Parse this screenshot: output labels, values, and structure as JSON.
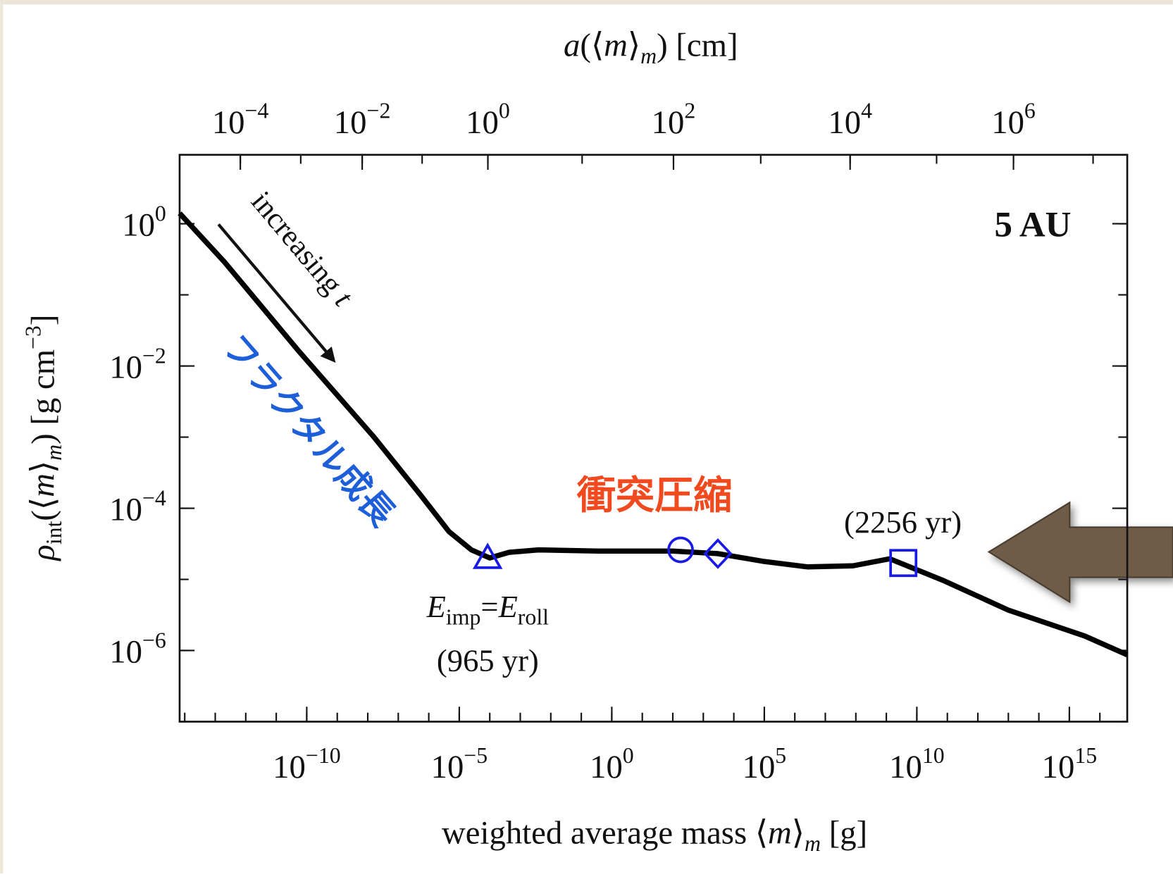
{
  "chart_data": {
    "type": "line",
    "log_x": true,
    "log_y": true,
    "x2_label": [
      "a",
      "(⟨",
      "m",
      "⟩",
      "m",
      ")  [cm]"
    ],
    "x_label": [
      "weighted average mass  ⟨",
      "m",
      "⟩",
      "m",
      "  [g]"
    ],
    "y_label": [
      "ρ",
      "int",
      "(⟨",
      "m",
      "⟩",
      "m",
      ")  [g cm",
      "−3",
      "]"
    ],
    "x": [
      6.8e-15,
      2e-13,
      5.6e-11,
      1.6e-08,
      5e-07,
      4.6e-06,
      2.5e-05,
      0.0001,
      0.00042,
      0.004,
      0.36,
      100,
      3000,
      89000.0,
      2600000.0,
      80000000.0,
      1300000000.0,
      68000000000.0,
      10000000000000.0,
      3200000000000000.0,
      7.9e+16
    ],
    "series": [
      {
        "color": "#000000",
        "values": [
          1.4,
          0.29,
          0.016,
          0.001,
          0.00016,
          4.7e-05,
          2.6e-05,
          2e-05,
          2.4e-05,
          2.6e-05,
          2.5e-05,
          2.5e-05,
          2.3e-05,
          1.8e-05,
          1.5e-05,
          1.55e-05,
          1.95e-05,
          9.8e-06,
          3.7e-06,
          1.6e-06,
          8.7e-07
        ]
      }
    ],
    "xlim": [
      6.8e-15,
      7.9e+16
    ],
    "ylim": [
      1e-07,
      9.3
    ],
    "xticks": [
      {
        "value": 1e-10,
        "label": "10",
        "sup": "−10"
      },
      {
        "value": 1e-05,
        "label": "10",
        "sup": "−5"
      },
      {
        "value": 1,
        "label": "10",
        "sup": "0"
      },
      {
        "value": 100000.0,
        "label": "10",
        "sup": "5"
      },
      {
        "value": 10000000000.0,
        "label": "10",
        "sup": "10"
      },
      {
        "value": 1000000000000000.0,
        "label": "10",
        "sup": "15"
      }
    ],
    "yticks": [
      {
        "value": 1,
        "label": "10",
        "sup": "0"
      },
      {
        "value": 0.01,
        "label": "10",
        "sup": "−2"
      },
      {
        "value": 0.0001,
        "label": "10",
        "sup": "−4"
      },
      {
        "value": 1e-06,
        "label": "10",
        "sup": "−6"
      }
    ],
    "x2ticks": [
      {
        "value": 0.0001,
        "label": "10",
        "sup": "−4"
      },
      {
        "value": 0.01,
        "label": "10",
        "sup": "−2"
      },
      {
        "value": 1,
        "label": "10",
        "sup": "0"
      },
      {
        "value": 100,
        "label": "10",
        "sup": "2"
      },
      {
        "value": 10000.0,
        "label": "10",
        "sup": "4"
      },
      {
        "value": 1000000.0,
        "label": "10",
        "sup": "6"
      }
    ],
    "markers": [
      {
        "shape": "triangle",
        "x": 8.5e-05,
        "y": 2e-05,
        "color": "#1a1ae6"
      },
      {
        "shape": "circle",
        "x": 180,
        "y": 2.6e-05,
        "color": "#1a1ae6"
      },
      {
        "shape": "diamond",
        "x": 3000,
        "y": 2.3e-05,
        "color": "#1a1ae6"
      },
      {
        "shape": "square",
        "x": 3600000000.0,
        "y": 1.7e-05,
        "color": "#1a1ae6"
      }
    ],
    "annotations": {
      "panel": "5 AU",
      "arrow_text": [
        "increasing ",
        "t"
      ],
      "fractal": "フラクタル成長",
      "compression": "衝突圧縮",
      "square_time": "(2256 yr)",
      "condition": [
        "E",
        "imp",
        "=",
        "E",
        "roll"
      ],
      "triangle_time": "(965  yr)"
    }
  }
}
